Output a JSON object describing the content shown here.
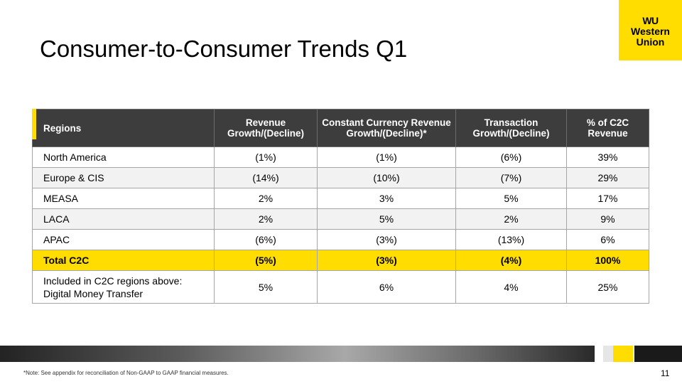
{
  "slide": {
    "title": "Consumer-to-Consumer Trends Q1",
    "footnote": "*Note: See appendix for reconciliation of Non-GAAP to GAAP financial measures.",
    "page_number": "11"
  },
  "logo": {
    "mark": "WU",
    "line1": "Western",
    "line2": "Union"
  },
  "table": {
    "headers": [
      "Regions",
      "Revenue Growth/(Decline)",
      "Constant Currency Revenue Growth/(Decline)*",
      "Transaction Growth/(Decline)",
      "% of C2C Revenue"
    ],
    "rows": [
      [
        "North America",
        "(1%)",
        "(1%)",
        "(6%)",
        "39%"
      ],
      [
        "Europe & CIS",
        "(14%)",
        "(10%)",
        "(7%)",
        "29%"
      ],
      [
        "MEASA",
        "2%",
        "3%",
        "5%",
        "17%"
      ],
      [
        "LACA",
        "2%",
        "5%",
        "2%",
        "9%"
      ],
      [
        "APAC",
        "(6%)",
        "(3%)",
        "(13%)",
        "6%"
      ],
      [
        "Total C2C",
        "(5%)",
        "(3%)",
        "(4%)",
        "100%"
      ]
    ],
    "digital_row": {
      "label_line1": "Included in C2C regions above:",
      "label_line2": "Digital Money Transfer",
      "values": [
        "5%",
        "6%",
        "4%",
        "25%"
      ]
    }
  },
  "colors": {
    "brand_yellow": "#ffdd00",
    "header_dark": "#3d3d3d"
  }
}
